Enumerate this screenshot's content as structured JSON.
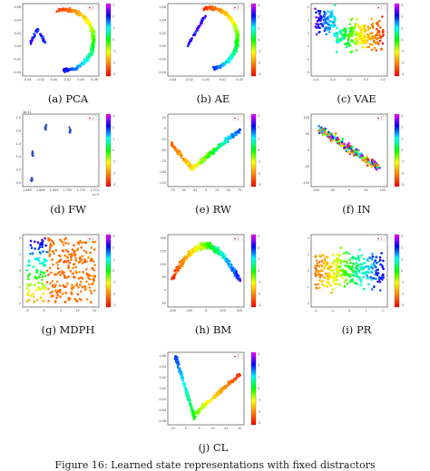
{
  "figure": {
    "caption": "Figure 16: Learned state representations with fixed distractors",
    "colorbar_ticks": [
      "3",
      "2",
      "1",
      "0",
      "-1",
      "-2",
      "-3"
    ],
    "colorbar_palette": [
      "#ff00ff",
      "#0000ff",
      "#00ffff",
      "#00ff00",
      "#ffff00",
      "#ff8000",
      "#ff0000"
    ],
    "panels": [
      {
        "id": "pca",
        "caption": "(a) PCA",
        "legend": "z",
        "yticks": [
          "0.06",
          "0.04",
          "0.02",
          "0.00",
          "-0.02",
          "-0.04"
        ],
        "xticks": [
          "-0.04",
          "-0.02",
          "0.00",
          "0.02",
          "0.04",
          "0.06"
        ]
      },
      {
        "id": "ae",
        "caption": "(b) AE",
        "legend": "z",
        "yticks": [
          "0.06",
          "0.04",
          "0.02",
          "0.00",
          "-0.02",
          "-0.04"
        ],
        "xticks": [
          "-0.04",
          "-0.02",
          "0.00",
          "0.02",
          "0.04"
        ]
      },
      {
        "id": "vae",
        "caption": "(c) VAE",
        "legend": "z",
        "yticks": [
          "2",
          "1",
          "0",
          "-1",
          "-2",
          "-3"
        ],
        "xticks": [
          "-1.0",
          "-0.5",
          "0.0",
          "0.5",
          "1.0"
        ]
      },
      {
        "id": "fw",
        "caption": "(d) FW",
        "legend": "z",
        "yticks": [
          "2.5",
          "2.0",
          "1.5",
          "1.0",
          "0.5",
          "0.0"
        ],
        "xticks": [
          "1.685",
          "1.689",
          "1.690",
          "1.700",
          "1.715",
          "1.720"
        ],
        "scale_top": "1e-11",
        "scale_bottom": "1e-9"
      },
      {
        "id": "rw",
        "caption": "(e) RW",
        "legend": "z",
        "yticks": [
          "25",
          "0",
          "-25",
          "-50",
          "-75",
          "-100",
          "-125"
        ],
        "xticks": [
          "-75",
          "-50",
          "-25",
          "0",
          "25",
          "50",
          "75"
        ]
      },
      {
        "id": "in",
        "caption": "(f) IN",
        "legend": "z",
        "yticks": [
          "100",
          "50",
          "0",
          "-50",
          "-100"
        ],
        "xticks": [
          "-100",
          "-50",
          "0",
          "50",
          "100"
        ]
      },
      {
        "id": "mdph",
        "caption": "(g) MDPH",
        "legend": "z",
        "yticks": [
          "2",
          "1",
          "0",
          "-1",
          "-2"
        ],
        "xticks": [
          "-5",
          "0",
          "5",
          "10",
          "15"
        ]
      },
      {
        "id": "bm",
        "caption": "(h) BM",
        "legend": "z",
        "yticks": [
          "200",
          "150",
          "100",
          "50",
          "0",
          "-50"
        ],
        "xticks": [
          "-200",
          "-100",
          "0",
          "100",
          "200"
        ]
      },
      {
        "id": "pr",
        "caption": "(i) PR",
        "legend": "z",
        "yticks": [
          "2",
          "1",
          "0",
          "-1",
          "-2"
        ],
        "xticks": [
          "-2",
          "-1",
          "0",
          "1",
          "2"
        ]
      },
      {
        "id": "cl",
        "caption": "(j) CL",
        "legend": "z",
        "yticks": [
          "0.06",
          "0.04",
          "0.02",
          "0.00",
          "-0.02",
          "-0.04",
          "-0.06"
        ],
        "xticks": [
          "-15",
          "0",
          "5",
          "10",
          "15",
          "20"
        ]
      }
    ]
  }
}
